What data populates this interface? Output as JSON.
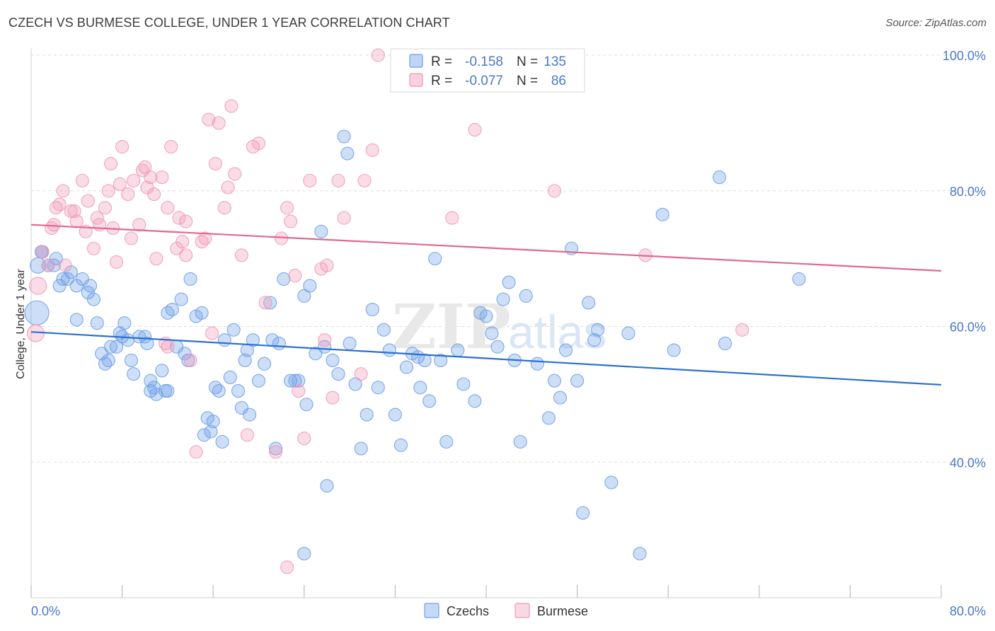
{
  "title": "CZECH VS BURMESE COLLEGE, UNDER 1 YEAR CORRELATION CHART",
  "source": "Source: ZipAtlas.com",
  "chart_data": {
    "type": "scatter",
    "title": "CZECH VS BURMESE COLLEGE, UNDER 1 YEAR CORRELATION CHART",
    "ylabel": "College, Under 1 year",
    "xlabel": "",
    "xlim": [
      0,
      80
    ],
    "ylim": [
      20,
      100
    ],
    "x_tick_labels": [
      "0.0%",
      "80.0%"
    ],
    "y_tick_labels": [
      "100.0%",
      "80.0%",
      "60.0%",
      "40.0%"
    ],
    "y_ticks": [
      100,
      80,
      60,
      40
    ],
    "grid": true,
    "legend_position": "top-center",
    "watermark": "ZIPatlas",
    "colors": {
      "Czechs": "#6fa1e8",
      "Burmese": "#f09ab8",
      "Czechs_line": "#2a6fd0",
      "Burmese_line": "#e06890"
    },
    "stats": [
      {
        "name": "Czechs",
        "r_label": "R =",
        "r": "-0.158",
        "n_label": "N =",
        "n": "135"
      },
      {
        "name": "Burmese",
        "r_label": "R =",
        "r": "-0.077",
        "n_label": "N =",
        "n": "86"
      }
    ],
    "series": [
      {
        "name": "Czechs",
        "trend": {
          "x": [
            0,
            80
          ],
          "y": [
            59.2,
            51.4
          ]
        },
        "points": [
          [
            0.5,
            62
          ],
          [
            0.6,
            69
          ],
          [
            0.9,
            71
          ],
          [
            1.0,
            71
          ],
          [
            1.5,
            69
          ],
          [
            2.0,
            69
          ],
          [
            2.2,
            70
          ],
          [
            2.5,
            66
          ],
          [
            2.8,
            67
          ],
          [
            3.2,
            67
          ],
          [
            3.5,
            68
          ],
          [
            4.0,
            66
          ],
          [
            4.5,
            67
          ],
          [
            5.0,
            65
          ],
          [
            5.2,
            66
          ],
          [
            5.5,
            64
          ],
          [
            4.0,
            61
          ],
          [
            5.8,
            60.5
          ],
          [
            6.2,
            56
          ],
          [
            6.5,
            54.5
          ],
          [
            6.8,
            55
          ],
          [
            7.0,
            57
          ],
          [
            7.5,
            57
          ],
          [
            7.8,
            59
          ],
          [
            8.0,
            58.5
          ],
          [
            8.2,
            60.5
          ],
          [
            8.5,
            58
          ],
          [
            8.8,
            55
          ],
          [
            9.0,
            53
          ],
          [
            9.5,
            58.5
          ],
          [
            10.0,
            58.5
          ],
          [
            10.2,
            57.5
          ],
          [
            10.5,
            52
          ],
          [
            10.8,
            51
          ],
          [
            11.0,
            50
          ],
          [
            11.5,
            53.5
          ],
          [
            11.8,
            50.5
          ],
          [
            12.0,
            62
          ],
          [
            12.4,
            62.5
          ],
          [
            12.8,
            57
          ],
          [
            13.2,
            64
          ],
          [
            13.5,
            56
          ],
          [
            13.8,
            55
          ],
          [
            14.0,
            67
          ],
          [
            14.5,
            61.5
          ],
          [
            15.0,
            62
          ],
          [
            15.2,
            44
          ],
          [
            15.5,
            46.5
          ],
          [
            15.8,
            44.5
          ],
          [
            16.0,
            46
          ],
          [
            16.2,
            51
          ],
          [
            16.5,
            50.5
          ],
          [
            16.8,
            43
          ],
          [
            17.0,
            58
          ],
          [
            17.5,
            52.5
          ],
          [
            17.8,
            59.5
          ],
          [
            18.2,
            50.5
          ],
          [
            18.5,
            48
          ],
          [
            18.8,
            55
          ],
          [
            19.0,
            56.5
          ],
          [
            19.2,
            47
          ],
          [
            19.5,
            58
          ],
          [
            20.0,
            52
          ],
          [
            20.5,
            54.5
          ],
          [
            21.0,
            63.5
          ],
          [
            21.2,
            58
          ],
          [
            21.5,
            42
          ],
          [
            21.8,
            57.5
          ],
          [
            22.2,
            67
          ],
          [
            22.8,
            52
          ],
          [
            23.2,
            52
          ],
          [
            23.5,
            52
          ],
          [
            24.0,
            64.5
          ],
          [
            24.2,
            48.5
          ],
          [
            24.5,
            66
          ],
          [
            25.0,
            56
          ],
          [
            25.5,
            74
          ],
          [
            25.8,
            57
          ],
          [
            26.0,
            36.5
          ],
          [
            26.5,
            55
          ],
          [
            27.0,
            53
          ],
          [
            27.5,
            88
          ],
          [
            27.8,
            85.5
          ],
          [
            28.0,
            57.5
          ],
          [
            28.5,
            51.5
          ],
          [
            29.0,
            42
          ],
          [
            29.5,
            47
          ],
          [
            30.0,
            62.5
          ],
          [
            30.5,
            51
          ],
          [
            31.0,
            59.5
          ],
          [
            31.5,
            56.5
          ],
          [
            32.0,
            47
          ],
          [
            32.5,
            42.5
          ],
          [
            33.0,
            54
          ],
          [
            33.5,
            56
          ],
          [
            34.0,
            55.5
          ],
          [
            34.2,
            51
          ],
          [
            34.6,
            55
          ],
          [
            35.0,
            49
          ],
          [
            35.5,
            70
          ],
          [
            36.0,
            55
          ],
          [
            36.5,
            43
          ],
          [
            37.5,
            56.5
          ],
          [
            38.0,
            51.5
          ],
          [
            39.0,
            49
          ],
          [
            39.5,
            62
          ],
          [
            40.0,
            61.5
          ],
          [
            40.5,
            59
          ],
          [
            41.0,
            57
          ],
          [
            41.5,
            64
          ],
          [
            42.0,
            66.5
          ],
          [
            42.5,
            55
          ],
          [
            43.0,
            43
          ],
          [
            43.5,
            64.5
          ],
          [
            44.5,
            54.5
          ],
          [
            45.5,
            46.5
          ],
          [
            46.0,
            52
          ],
          [
            46.5,
            49.5
          ],
          [
            47.0,
            56.5
          ],
          [
            47.5,
            71.5
          ],
          [
            48.0,
            52
          ],
          [
            48.5,
            32.5
          ],
          [
            49.0,
            63.5
          ],
          [
            49.5,
            58
          ],
          [
            49.8,
            59.5
          ],
          [
            51.0,
            37
          ],
          [
            52.5,
            59
          ],
          [
            53.5,
            26.5
          ],
          [
            55.5,
            76.5
          ],
          [
            56.5,
            56.5
          ],
          [
            60.5,
            82
          ],
          [
            61.0,
            57.5
          ],
          [
            67.5,
            67
          ],
          [
            24.0,
            26.5
          ],
          [
            10.5,
            50.5
          ],
          [
            12.0,
            50.5
          ]
        ]
      },
      {
        "name": "Burmese",
        "trend": {
          "x": [
            0,
            80
          ],
          "y": [
            75,
            68.2
          ]
        },
        "points": [
          [
            0.4,
            59
          ],
          [
            0.6,
            66
          ],
          [
            1.0,
            71
          ],
          [
            1.5,
            69
          ],
          [
            1.8,
            74.5
          ],
          [
            2.0,
            75
          ],
          [
            2.2,
            77.5
          ],
          [
            2.5,
            78
          ],
          [
            2.8,
            80
          ],
          [
            3.0,
            69
          ],
          [
            3.5,
            77
          ],
          [
            3.8,
            77
          ],
          [
            4.0,
            75.5
          ],
          [
            4.5,
            81.5
          ],
          [
            4.8,
            74
          ],
          [
            5.0,
            78.5
          ],
          [
            5.5,
            71.5
          ],
          [
            5.8,
            76
          ],
          [
            6.0,
            75
          ],
          [
            6.5,
            77.5
          ],
          [
            6.8,
            80
          ],
          [
            7.0,
            84
          ],
          [
            7.5,
            69.5
          ],
          [
            7.8,
            81
          ],
          [
            8.0,
            86.5
          ],
          [
            8.5,
            79.5
          ],
          [
            8.8,
            73
          ],
          [
            9.0,
            81.5
          ],
          [
            9.5,
            75
          ],
          [
            9.8,
            83
          ],
          [
            10.0,
            83.5
          ],
          [
            10.2,
            80.5
          ],
          [
            10.5,
            82
          ],
          [
            10.8,
            79.5
          ],
          [
            11.0,
            70
          ],
          [
            11.5,
            82
          ],
          [
            11.8,
            57.5
          ],
          [
            12.0,
            77.5
          ],
          [
            12.3,
            86.5
          ],
          [
            12.8,
            71.5
          ],
          [
            13.0,
            76
          ],
          [
            13.3,
            72.5
          ],
          [
            13.6,
            75.5
          ],
          [
            14.0,
            55
          ],
          [
            14.5,
            41.5
          ],
          [
            15.0,
            72.5
          ],
          [
            15.3,
            73
          ],
          [
            15.6,
            90.5
          ],
          [
            15.9,
            59
          ],
          [
            16.2,
            84
          ],
          [
            16.5,
            90
          ],
          [
            17.0,
            77.5
          ],
          [
            17.3,
            80.5
          ],
          [
            17.6,
            92.5
          ],
          [
            17.9,
            82.5
          ],
          [
            18.5,
            70.5
          ],
          [
            19.0,
            44
          ],
          [
            19.5,
            86.5
          ],
          [
            20.0,
            87
          ],
          [
            20.6,
            63.5
          ],
          [
            21.5,
            41.5
          ],
          [
            22.0,
            73
          ],
          [
            22.5,
            77.5
          ],
          [
            22.8,
            75.5
          ],
          [
            23.2,
            67.5
          ],
          [
            23.5,
            50.5
          ],
          [
            24.0,
            43.5
          ],
          [
            24.5,
            81.5
          ],
          [
            25.5,
            68.5
          ],
          [
            26.0,
            69
          ],
          [
            26.5,
            49.5
          ],
          [
            27.0,
            81.5
          ],
          [
            27.5,
            76
          ],
          [
            29.0,
            53
          ],
          [
            29.3,
            81.5
          ],
          [
            30.0,
            86
          ],
          [
            30.5,
            100
          ],
          [
            37.0,
            76
          ],
          [
            39.0,
            89
          ],
          [
            46.0,
            80
          ],
          [
            54.0,
            70.5
          ],
          [
            62.5,
            59.5
          ],
          [
            22.5,
            24.5
          ],
          [
            25.8,
            58
          ],
          [
            13.6,
            70.5
          ],
          [
            12.0,
            57
          ],
          [
            7.2,
            74.5
          ]
        ]
      }
    ]
  },
  "legend": {
    "items": [
      {
        "r_label": "R =",
        "r": "-0.158",
        "n_label": "N =",
        "n": "135"
      },
      {
        "r_label": "R =",
        "r": "-0.077",
        "n_label": "N =",
        "n": "86"
      }
    ]
  },
  "bottom_legend": [
    "Czechs",
    "Burmese"
  ]
}
